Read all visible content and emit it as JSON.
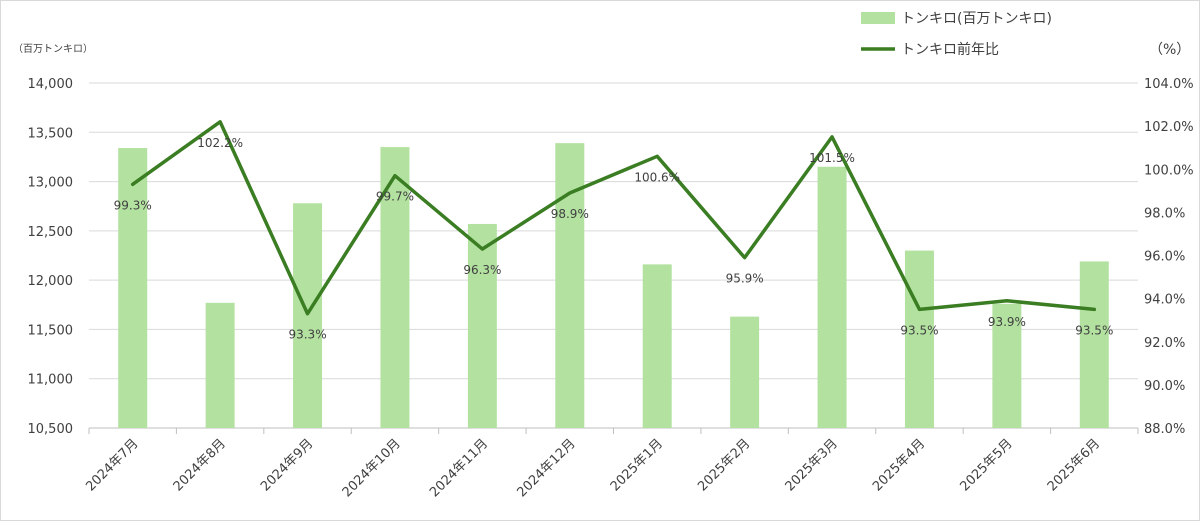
{
  "chart_data": {
    "type": "bar",
    "categories": [
      "2024年7月",
      "2024年8月",
      "2024年9月",
      "2024年10月",
      "2024年11月",
      "2024年12月",
      "2025年1月",
      "2025年2月",
      "2025年3月",
      "2025年4月",
      "2025年5月",
      "2025年6月"
    ],
    "series": [
      {
        "name": "トンキロ(百万トンキロ)",
        "type": "bar",
        "axis": "left",
        "color": "#b3e2a0",
        "values": [
          13340,
          11770,
          12780,
          13350,
          12570,
          13390,
          12160,
          11630,
          13150,
          12300,
          11760,
          12190
        ]
      },
      {
        "name": "トンキロ前年比",
        "type": "line",
        "axis": "right",
        "color": "#3a7d22",
        "values": [
          99.3,
          102.2,
          93.3,
          99.7,
          96.3,
          98.9,
          100.6,
          95.9,
          101.5,
          93.5,
          93.9,
          93.5
        ],
        "labels": [
          "99.3%",
          "102.2%",
          "93.3%",
          "99.7%",
          "96.3%",
          "98.9%",
          "100.6%",
          "95.9%",
          "101.5%",
          "93.5%",
          "93.9%",
          "93.5%"
        ]
      }
    ],
    "y_left": {
      "unit_label": "（百万トンキロ）",
      "ylim": [
        10500,
        14000
      ],
      "ticks": [
        10500,
        11000,
        11500,
        12000,
        12500,
        13000,
        13500,
        14000
      ],
      "tick_labels": [
        "10,500",
        "11,000",
        "11,500",
        "12,000",
        "12,500",
        "13,000",
        "13,500",
        "14,000"
      ]
    },
    "y_right": {
      "unit_label": "（%）",
      "ylim": [
        88,
        104
      ],
      "ticks": [
        88,
        90,
        92,
        94,
        96,
        98,
        100,
        102,
        104
      ],
      "tick_labels": [
        "88.0%",
        "90.0%",
        "92.0%",
        "94.0%",
        "96.0%",
        "98.0%",
        "100.0%",
        "102.0%",
        "104.0%"
      ]
    },
    "grid": true,
    "legend_position": "top-right"
  }
}
